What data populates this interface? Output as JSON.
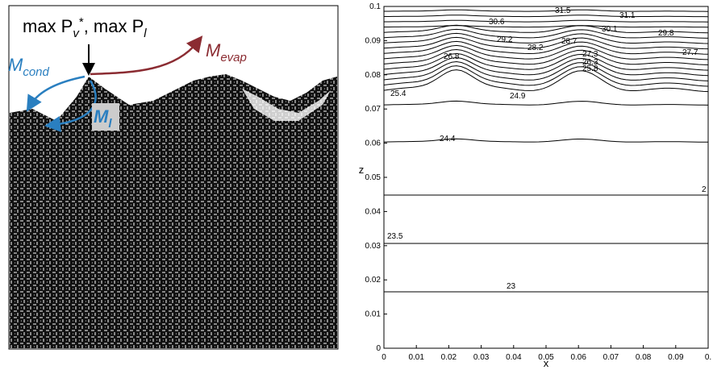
{
  "left_panel": {
    "label_max": {
      "parts": [
        "max P",
        "v",
        "*",
        ", max P",
        "l"
      ]
    },
    "m_cond": {
      "symbol": "M",
      "subscript": "cond"
    },
    "m_evap": {
      "symbol": "M",
      "subscript": "evap"
    },
    "m_l": {
      "symbol": "M",
      "subscript": "l"
    }
  },
  "right_panel": {
    "x_label": "x",
    "z_label": "z",
    "x_ticks": [
      "0",
      "0.01",
      "0.02",
      "0.03",
      "0.04",
      "0.05",
      "0.06",
      "0.07",
      "0.08",
      "0.09",
      "0."
    ],
    "z_ticks": [
      "0",
      "0.01",
      "0.02",
      "0.03",
      "0.04",
      "0.05",
      "0.06",
      "0.07",
      "0.08",
      "0.09",
      "0.1"
    ],
    "contour_labels": [
      "31.5",
      "31.1",
      "30.6",
      "30.1",
      "29.8",
      "29.2",
      "28.7",
      "28.2",
      "27.7",
      "27.3",
      "26.8",
      "26.3",
      "25.8",
      "25.4",
      "24.9",
      "24.4",
      "23.5",
      "23",
      "2"
    ]
  }
}
